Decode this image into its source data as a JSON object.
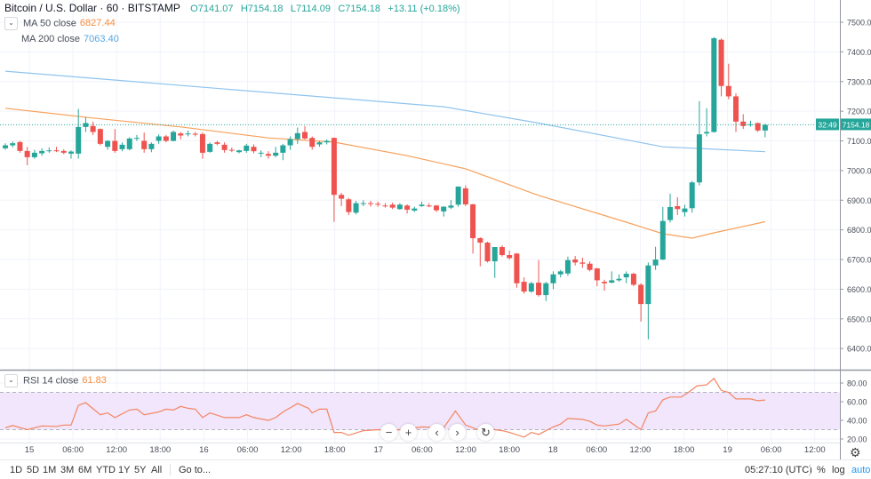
{
  "header": {
    "symbol": "Bitcoin / U.S. Dollar · 60 · BITSTAMP",
    "open": "O7141.07",
    "high": "H7154.18",
    "low": "L7114.09",
    "close": "C7154.18",
    "change": "+13.11 (+0.18%)"
  },
  "indicators": {
    "ma50_label": "MA 50 close",
    "ma50_value": "6827.44",
    "ma200_label": "MA 200 close",
    "ma200_value": "7063.40",
    "rsi_label": "RSI 14 close",
    "rsi_value": "61.83"
  },
  "price_axis": {
    "labels": [
      "7500.00",
      "7400.00",
      "7300.00",
      "7200.00",
      "7100.00",
      "7000.00",
      "6900.00",
      "6800.00",
      "6700.00",
      "6600.00",
      "6500.00",
      "6400.00"
    ],
    "last_price": "7154.18",
    "countdown": "32:49"
  },
  "rsi_axis": {
    "labels": [
      "80.00",
      "60.00",
      "40.00",
      "20.00"
    ]
  },
  "time_axis": {
    "labels": [
      "15",
      "06:00",
      "12:00",
      "18:00",
      "16",
      "06:00",
      "12:00",
      "18:00",
      "17",
      "06:00",
      "12:00",
      "18:00",
      "18",
      "06:00",
      "12:00",
      "18:00",
      "19",
      "06:00",
      "12:00"
    ]
  },
  "colors": {
    "up": "#26a69a",
    "down": "#ef5350",
    "ma50": "#f7a05a",
    "ma200": "#8fc4ee",
    "rsi": "#f4845f",
    "rsi_band": "#f1e6fc",
    "accent": "#2196f3"
  },
  "controls": {
    "zoom_out": "−",
    "zoom_in": "+",
    "scroll_left": "‹",
    "scroll_right": "›",
    "reset": "↻"
  },
  "bottom_bar": {
    "ranges": [
      "1D",
      "5D",
      "1M",
      "3M",
      "6M",
      "YTD",
      "1Y",
      "5Y",
      "All"
    ],
    "goto": "Go to...",
    "clock": "05:27:10 (UTC)",
    "percent": "%",
    "log": "log",
    "auto": "auto"
  },
  "chart_data": {
    "type": "candlestick",
    "interval": "60",
    "price_range": [
      6400,
      7500
    ],
    "rsi_range": [
      20,
      80
    ],
    "rsi_band": [
      30,
      70
    ],
    "last_price": 7154.18,
    "candles_ohlc": [
      [
        7075,
        7092,
        7070,
        7085
      ],
      [
        7085,
        7098,
        7078,
        7092
      ],
      [
        7096,
        7100,
        7060,
        7066
      ],
      [
        7066,
        7080,
        7018,
        7045
      ],
      [
        7045,
        7070,
        7040,
        7060
      ],
      [
        7058,
        7075,
        7050,
        7066
      ],
      [
        7066,
        7078,
        7060,
        7068
      ],
      [
        7068,
        7080,
        7062,
        7066
      ],
      [
        7066,
        7072,
        7055,
        7060
      ],
      [
        7057,
        7068,
        7040,
        7064
      ],
      [
        7057,
        7208,
        7040,
        7147
      ],
      [
        7147,
        7180,
        7130,
        7160
      ],
      [
        7150,
        7165,
        7120,
        7130
      ],
      [
        7140,
        7142,
        7085,
        7090
      ],
      [
        7080,
        7102,
        7070,
        7100
      ],
      [
        7100,
        7140,
        7060,
        7066
      ],
      [
        7072,
        7095,
        7065,
        7087
      ],
      [
        7072,
        7112,
        7068,
        7108
      ],
      [
        7108,
        7120,
        7100,
        7110
      ],
      [
        7100,
        7128,
        7060,
        7072
      ],
      [
        7072,
        7095,
        7062,
        7090
      ],
      [
        7100,
        7122,
        7090,
        7115
      ],
      [
        7115,
        7120,
        7095,
        7100
      ],
      [
        7100,
        7135,
        7098,
        7130
      ],
      [
        7125,
        7130,
        7105,
        7118
      ],
      [
        7122,
        7135,
        7115,
        7125
      ],
      [
        7124,
        7130,
        7115,
        7122
      ],
      [
        7123,
        7128,
        7040,
        7060
      ],
      [
        7063,
        7095,
        7060,
        7090
      ],
      [
        7095,
        7100,
        7085,
        7090
      ],
      [
        7087,
        7095,
        7060,
        7069
      ],
      [
        7070,
        7078,
        7062,
        7068
      ],
      [
        7062,
        7070,
        7058,
        7068
      ],
      [
        7066,
        7090,
        7060,
        7084
      ],
      [
        7080,
        7088,
        7058,
        7065
      ],
      [
        7060,
        7068,
        7045,
        7060
      ],
      [
        7056,
        7065,
        7040,
        7050
      ],
      [
        7050,
        7080,
        7045,
        7060
      ],
      [
        7060,
        7090,
        7035,
        7085
      ],
      [
        7085,
        7115,
        7070,
        7106
      ],
      [
        7106,
        7145,
        7090,
        7126
      ],
      [
        7130,
        7150,
        7105,
        7108
      ],
      [
        7110,
        7115,
        7070,
        7080
      ],
      [
        7088,
        7100,
        7080,
        7095
      ],
      [
        7095,
        7105,
        7088,
        7100
      ],
      [
        7110,
        7112,
        6827,
        6918
      ],
      [
        6918,
        6925,
        6880,
        6905
      ],
      [
        6903,
        6908,
        6850,
        6860
      ],
      [
        6858,
        6898,
        6852,
        6890
      ],
      [
        6888,
        6900,
        6880,
        6890
      ],
      [
        6890,
        6898,
        6878,
        6888
      ],
      [
        6888,
        6895,
        6878,
        6886
      ],
      [
        6882,
        6890,
        6875,
        6880
      ],
      [
        6885,
        6892,
        6870,
        6875
      ],
      [
        6870,
        6890,
        6868,
        6885
      ],
      [
        6882,
        6886,
        6855,
        6868
      ],
      [
        6865,
        6878,
        6860,
        6872
      ],
      [
        6880,
        6895,
        6878,
        6885
      ],
      [
        6882,
        6890,
        6876,
        6880
      ],
      [
        6882,
        6884,
        6860,
        6866
      ],
      [
        6862,
        6880,
        6845,
        6878
      ],
      [
        6875,
        6900,
        6870,
        6882
      ],
      [
        6885,
        6946,
        6878,
        6946
      ],
      [
        6940,
        6950,
        6880,
        6886
      ],
      [
        6886,
        6888,
        6720,
        6772
      ],
      [
        6772,
        6775,
        6677,
        6757
      ],
      [
        6757,
        6760,
        6690,
        6694
      ],
      [
        6694,
        6742,
        6638,
        6742
      ],
      [
        6742,
        6748,
        6710,
        6715
      ],
      [
        6715,
        6730,
        6700,
        6705
      ],
      [
        6720,
        6722,
        6605,
        6620
      ],
      [
        6625,
        6640,
        6585,
        6592
      ],
      [
        6592,
        6625,
        6588,
        6620
      ],
      [
        6622,
        6698,
        6575,
        6580
      ],
      [
        6580,
        6625,
        6560,
        6620
      ],
      [
        6620,
        6660,
        6600,
        6650
      ],
      [
        6650,
        6665,
        6640,
        6660
      ],
      [
        6653,
        6710,
        6645,
        6698
      ],
      [
        6700,
        6712,
        6680,
        6690
      ],
      [
        6690,
        6706,
        6672,
        6686
      ],
      [
        6686,
        6694,
        6660,
        6665
      ],
      [
        6670,
        6672,
        6610,
        6630
      ],
      [
        6625,
        6632,
        6595,
        6620
      ],
      [
        6622,
        6660,
        6620,
        6630
      ],
      [
        6630,
        6650,
        6625,
        6635
      ],
      [
        6640,
        6660,
        6620,
        6652
      ],
      [
        6652,
        6656,
        6610,
        6615
      ],
      [
        6615,
        6620,
        6491,
        6550
      ],
      [
        6550,
        6690,
        6431,
        6680
      ],
      [
        6680,
        6743,
        6665,
        6700
      ],
      [
        6700,
        6877,
        6698,
        6830
      ],
      [
        6833,
        6922,
        6825,
        6877
      ],
      [
        6880,
        6910,
        6850,
        6870
      ],
      [
        6860,
        6885,
        6845,
        6872
      ],
      [
        6873,
        6965,
        6858,
        6960
      ],
      [
        6960,
        7234,
        6950,
        7122
      ],
      [
        7125,
        7210,
        7115,
        7130
      ],
      [
        7130,
        7450,
        7128,
        7446
      ],
      [
        7441,
        7445,
        7250,
        7285
      ],
      [
        7285,
        7360,
        7240,
        7250
      ],
      [
        7250,
        7260,
        7130,
        7165
      ],
      [
        7165,
        7190,
        7140,
        7150
      ],
      [
        7155,
        7168,
        7148,
        7156
      ],
      [
        7160,
        7162,
        7130,
        7135
      ],
      [
        7135,
        7158,
        7112,
        7154.18
      ]
    ],
    "ma50": [
      [
        0,
        7210
      ],
      [
        12,
        7177
      ],
      [
        24,
        7147
      ],
      [
        36,
        7110
      ],
      [
        45,
        7096
      ],
      [
        55,
        7050
      ],
      [
        63,
        7006
      ],
      [
        73,
        6916
      ],
      [
        85,
        6826
      ],
      [
        90,
        6787
      ],
      [
        94,
        6772
      ],
      [
        97,
        6790
      ],
      [
        104,
        6827.44
      ]
    ],
    "ma200": [
      [
        0,
        7335
      ],
      [
        36,
        7263
      ],
      [
        60,
        7215
      ],
      [
        73,
        7160
      ],
      [
        90,
        7080
      ],
      [
        96,
        7073
      ],
      [
        104,
        7063.4
      ]
    ],
    "rsi": [
      [
        0,
        32
      ],
      [
        1,
        34.5
      ],
      [
        3,
        30
      ],
      [
        5,
        34
      ],
      [
        7,
        33.5
      ],
      [
        8,
        35
      ],
      [
        9,
        35
      ],
      [
        10,
        56
      ],
      [
        11,
        59
      ],
      [
        13,
        46
      ],
      [
        14,
        48
      ],
      [
        15,
        43
      ],
      [
        17,
        51
      ],
      [
        18,
        52
      ],
      [
        19,
        46
      ],
      [
        21,
        49
      ],
      [
        22,
        52
      ],
      [
        23,
        51
      ],
      [
        24,
        55
      ],
      [
        25,
        53
      ],
      [
        26,
        52
      ],
      [
        27,
        43
      ],
      [
        28,
        48
      ],
      [
        30,
        43
      ],
      [
        32,
        43
      ],
      [
        33,
        46
      ],
      [
        34,
        43
      ],
      [
        36,
        40
      ],
      [
        37,
        43
      ],
      [
        38,
        49
      ],
      [
        40,
        58
      ],
      [
        41.5,
        53
      ],
      [
        42,
        48
      ],
      [
        43,
        52
      ],
      [
        44,
        52
      ],
      [
        45,
        27
      ],
      [
        46,
        27
      ],
      [
        47,
        24
      ],
      [
        49,
        29
      ],
      [
        51,
        30
      ],
      [
        52.5,
        29
      ],
      [
        55.5,
        31
      ],
      [
        57,
        33
      ],
      [
        60,
        32
      ],
      [
        61.6,
        50
      ],
      [
        63,
        35
      ],
      [
        64.7,
        30
      ],
      [
        66,
        31
      ],
      [
        68,
        29
      ],
      [
        69,
        27
      ],
      [
        71,
        22
      ],
      [
        72,
        27
      ],
      [
        73,
        25
      ],
      [
        75,
        33
      ],
      [
        76,
        36
      ],
      [
        77,
        42
      ],
      [
        79,
        41
      ],
      [
        80,
        39
      ],
      [
        81,
        35
      ],
      [
        82,
        34
      ],
      [
        84,
        36
      ],
      [
        85,
        41
      ],
      [
        87,
        30
      ],
      [
        88,
        48
      ],
      [
        89,
        50
      ],
      [
        90,
        62
      ],
      [
        91,
        65
      ],
      [
        92.5,
        65
      ],
      [
        93.5,
        70
      ],
      [
        94.7,
        77
      ],
      [
        96,
        78
      ],
      [
        97,
        85
      ],
      [
        98,
        72
      ],
      [
        99,
        70
      ],
      [
        100,
        63
      ],
      [
        102,
        63
      ],
      [
        103,
        61
      ],
      [
        104,
        61.83
      ]
    ]
  }
}
